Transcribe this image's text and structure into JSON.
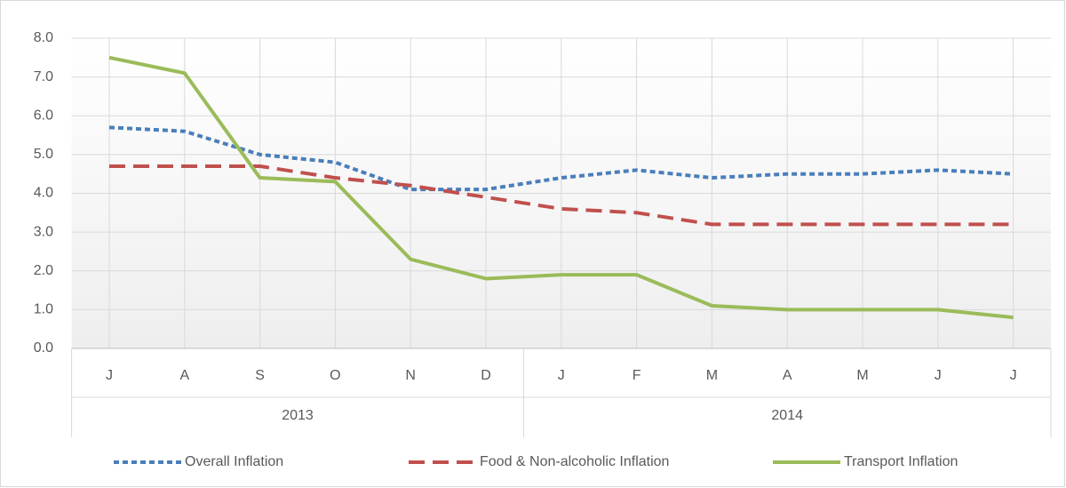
{
  "chart_data": {
    "type": "line",
    "categories": [
      "J",
      "A",
      "S",
      "O",
      "N",
      "D",
      "J",
      "F",
      "M",
      "A",
      "M",
      "J",
      "J"
    ],
    "groups": [
      {
        "label": "2013",
        "count": 6
      },
      {
        "label": "2014",
        "count": 7
      }
    ],
    "series": [
      {
        "name": "Overall Inflation",
        "color": "#4a7ebb",
        "dash": "short",
        "values": [
          5.7,
          5.6,
          5.0,
          4.8,
          4.1,
          4.1,
          4.4,
          4.6,
          4.4,
          4.5,
          4.5,
          4.6,
          4.5
        ]
      },
      {
        "name": "Food & Non-alcoholic Inflation",
        "color": "#c0504d",
        "dash": "long",
        "values": [
          4.7,
          4.7,
          4.7,
          4.4,
          4.2,
          3.9,
          3.6,
          3.5,
          3.2,
          3.2,
          3.2,
          3.2,
          3.2
        ]
      },
      {
        "name": "Transport Inflation",
        "color": "#9bbb59",
        "dash": "solid",
        "values": [
          7.5,
          7.1,
          4.4,
          4.3,
          2.3,
          1.8,
          1.9,
          1.9,
          1.1,
          1.0,
          1.0,
          1.0,
          0.8
        ]
      }
    ],
    "ylim": [
      0,
      8
    ],
    "yticks": [
      {
        "value": 0,
        "label": "0.0"
      },
      {
        "value": 1,
        "label": "1.0"
      },
      {
        "value": 2,
        "label": "2.0"
      },
      {
        "value": 3,
        "label": "3.0"
      },
      {
        "value": 4,
        "label": "4.0"
      },
      {
        "value": 5,
        "label": "5.0"
      },
      {
        "value": 6,
        "label": "6.0"
      },
      {
        "value": 7,
        "label": "7.0"
      },
      {
        "value": 8,
        "label": "8.0"
      }
    ],
    "grid": true,
    "legend": "bottom"
  }
}
